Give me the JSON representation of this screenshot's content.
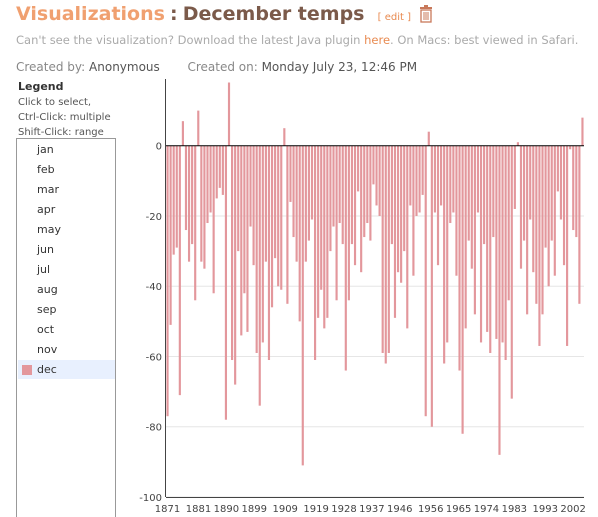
{
  "header": {
    "app_link": "Visualizations",
    "separator": ":",
    "title": "December temps",
    "edit_label": "edit",
    "edit_open": "[",
    "edit_close": "]"
  },
  "plugin_notice": {
    "prefix": "Can't see the visualization? Download the latest Java plugin ",
    "link": "here",
    "suffix": ". On Macs: best viewed in Safari."
  },
  "meta": {
    "created_by_label": "Created by:",
    "created_by": "Anonymous",
    "created_on_label": "Created on:",
    "created_on": "Monday July 23, 12:46 PM"
  },
  "legend": {
    "title": "Legend",
    "hints": [
      "Click to select,",
      "Ctrl-Click: multiple",
      "Shift-Click: range"
    ],
    "items": [
      "jan",
      "feb",
      "mar",
      "apr",
      "may",
      "jun",
      "jul",
      "aug",
      "sep",
      "oct",
      "nov",
      "dec"
    ],
    "selected": "dec",
    "selected_color": "#e3979c"
  },
  "colors": {
    "bar": "#e3979c",
    "grid": "#e6e6e6",
    "zero": "#000000",
    "axis": "#444444"
  },
  "chart_data": {
    "type": "bar",
    "series": [
      {
        "name": "dec"
      }
    ],
    "x_start": 1871,
    "x_end": 2006,
    "x_ticks": [
      "1871",
      "1881",
      "1890",
      "1899",
      "1909",
      "1919",
      "1928",
      "1937",
      "1946",
      "1956",
      "1965",
      "1974",
      "1983",
      "1993",
      "2002"
    ],
    "y_ticks": [
      "0",
      "-20",
      "-40",
      "-60",
      "-80",
      "-100"
    ],
    "ylim": [
      -100,
      19
    ],
    "grid": true,
    "values": [
      -77,
      -51,
      -31,
      -29,
      -71,
      7,
      -24,
      -33,
      -28,
      -44,
      10,
      -33,
      -35,
      -22,
      -19,
      -42,
      -15,
      -12,
      -14,
      -78,
      18,
      -61,
      -68,
      -30,
      -54,
      -42,
      -53,
      -23,
      -34,
      -59,
      -74,
      -56,
      -33,
      -61,
      -46,
      -32,
      -40,
      -41,
      5,
      -45,
      -16,
      -26,
      -33,
      -50,
      -91,
      -33,
      -27,
      -21,
      -61,
      -49,
      -41,
      -52,
      -49,
      -30,
      -23,
      -44,
      -22,
      -28,
      -64,
      -44,
      -28,
      -34,
      -13,
      -36,
      -26,
      -22,
      -27,
      -11,
      -17,
      -20,
      -59,
      -62,
      -59,
      -28,
      -49,
      -36,
      -39,
      -30,
      -52,
      -17,
      -37,
      -20,
      -19,
      -14,
      -77,
      4,
      -80,
      -19,
      -34,
      -17,
      -62,
      -56,
      -22,
      -19,
      -37,
      -64,
      -82,
      -52,
      -27,
      -35,
      -48,
      -19,
      -56,
      -28,
      -53,
      -59,
      -26,
      -55,
      -88,
      -56,
      -61,
      -44,
      -72,
      -18,
      1,
      -35,
      -27,
      -48,
      -21,
      -36,
      -45,
      -57,
      -48,
      -29,
      -40,
      -27,
      -37,
      -13,
      -21,
      -34,
      -57,
      -1,
      -24,
      -26,
      -45,
      8
    ]
  }
}
